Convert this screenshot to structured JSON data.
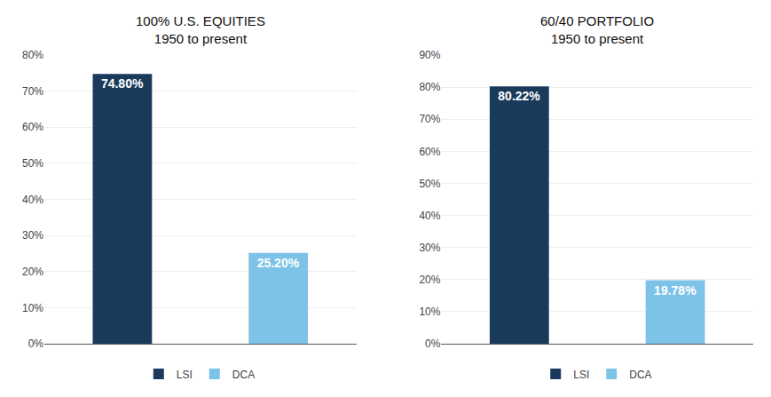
{
  "chart_data": [
    {
      "type": "bar",
      "title": "100% U.S. EQUITIES",
      "subtitle": "1950 to present",
      "categories": [
        null,
        null
      ],
      "series": [
        {
          "name": "LSI",
          "color": "#1a3a5c",
          "values": [
            74.8,
            null
          ],
          "value_labels": [
            "74.80%",
            null
          ]
        },
        {
          "name": "DCA",
          "color": "#7dc3e8",
          "values": [
            null,
            25.2
          ],
          "value_labels": [
            null,
            "25.20%"
          ]
        }
      ],
      "ylim": [
        0,
        80
      ],
      "yticks": [
        {
          "value": 0,
          "label": "0%"
        },
        {
          "value": 10,
          "label": "10%"
        },
        {
          "value": 20,
          "label": "20%"
        },
        {
          "value": 30,
          "label": "30%"
        },
        {
          "value": 40,
          "label": "40%"
        },
        {
          "value": 50,
          "label": "50%"
        },
        {
          "value": 60,
          "label": "60%"
        },
        {
          "value": 70,
          "label": "70%"
        },
        {
          "value": 80,
          "label": "80%"
        }
      ],
      "grid": true,
      "legend": "bottom",
      "data_labels": true,
      "tick_labels": "y"
    },
    {
      "type": "bar",
      "title": "60/40 PORTFOLIO",
      "subtitle": "1950 to present",
      "categories": [
        null,
        null
      ],
      "series": [
        {
          "name": "LSI",
          "color": "#1a3a5c",
          "values": [
            80.22,
            null
          ],
          "value_labels": [
            "80.22%",
            null
          ]
        },
        {
          "name": "DCA",
          "color": "#7dc3e8",
          "values": [
            null,
            19.78
          ],
          "value_labels": [
            null,
            "19.78%"
          ]
        }
      ],
      "ylim": [
        0,
        90
      ],
      "yticks": [
        {
          "value": 0,
          "label": "0%"
        },
        {
          "value": 10,
          "label": "10%"
        },
        {
          "value": 20,
          "label": "20%"
        },
        {
          "value": 30,
          "label": "30%"
        },
        {
          "value": 40,
          "label": "40%"
        },
        {
          "value": 50,
          "label": "50%"
        },
        {
          "value": 60,
          "label": "60%"
        },
        {
          "value": 70,
          "label": "70%"
        },
        {
          "value": 80,
          "label": "80%"
        },
        {
          "value": 90,
          "label": "90%"
        }
      ],
      "grid": true,
      "legend": "bottom",
      "data_labels": true,
      "tick_labels": "y"
    }
  ]
}
